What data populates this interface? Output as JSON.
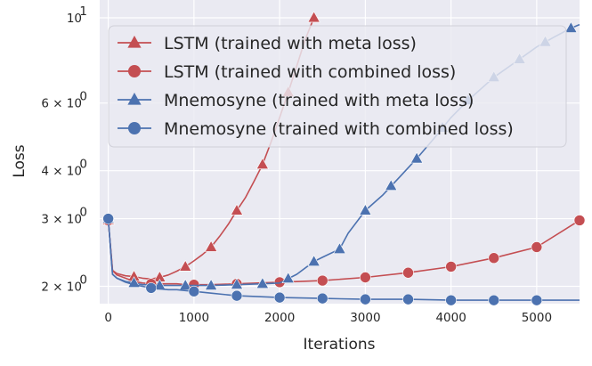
{
  "chart_data": {
    "type": "line",
    "xlabel": "Iterations",
    "ylabel": "Loss",
    "yscale": "log",
    "xlim": [
      -100,
      5500
    ],
    "ylim": [
      1.62,
      10.0
    ],
    "grid": true,
    "x_ticks": [
      0,
      1000,
      2000,
      3000,
      4000,
      5000
    ],
    "x_tick_labels": [
      "0",
      "1000",
      "2000",
      "3000",
      "4000",
      "5000"
    ],
    "y_ticks": [
      10,
      6,
      4,
      3,
      2
    ],
    "y_tick_labels": [
      {
        "mant": "10",
        "exp": "1",
        "prefix": ""
      },
      {
        "mant": "10",
        "exp": "0",
        "prefix": "6 × "
      },
      {
        "mant": "10",
        "exp": "0",
        "prefix": "4 × "
      },
      {
        "mant": "10",
        "exp": "0",
        "prefix": "3 × "
      },
      {
        "mant": "10",
        "exp": "0",
        "prefix": "2 × "
      }
    ],
    "legend_position": "top",
    "series": [
      {
        "name": "LSTM (trained with meta loss)",
        "color": "#c44e52",
        "marker": "triangle",
        "x": [
          0,
          50,
          100,
          200,
          300,
          400,
          500,
          600,
          700,
          800,
          900,
          1000,
          1100,
          1200,
          1300,
          1400,
          1500,
          1600,
          1700,
          1800,
          1900,
          2000,
          2100,
          2200,
          2300,
          2400
        ],
        "y": [
          2.97,
          2.2,
          2.16,
          2.13,
          2.12,
          2.1,
          2.09,
          2.11,
          2.14,
          2.19,
          2.25,
          2.33,
          2.42,
          2.53,
          2.7,
          2.9,
          3.15,
          3.4,
          3.75,
          4.15,
          4.75,
          5.5,
          6.4,
          7.5,
          8.8,
          10.0
        ],
        "marker_x": [
          0,
          300,
          600,
          900,
          1200,
          1500,
          1800,
          2100,
          2400
        ]
      },
      {
        "name": "LSTM (trained with combined loss)",
        "color": "#c44e52",
        "marker": "circle",
        "x": [
          0,
          50,
          100,
          200,
          300,
          400,
          500,
          600,
          700,
          800,
          900,
          1000,
          1200,
          1500,
          2000,
          2500,
          3000,
          3500,
          4000,
          4500,
          5000,
          5500
        ],
        "y": [
          2.97,
          2.2,
          2.14,
          2.1,
          2.06,
          2.04,
          2.03,
          2.03,
          2.03,
          2.03,
          2.02,
          2.02,
          2.02,
          2.03,
          2.05,
          2.07,
          2.11,
          2.17,
          2.25,
          2.37,
          2.53,
          2.97
        ],
        "marker_x": [
          0,
          500,
          1000,
          1500,
          2000,
          2500,
          3000,
          3500,
          4000,
          4500,
          5000,
          5500
        ]
      },
      {
        "name": "Mnemosyne (trained with meta loss)",
        "color": "#4c72b0",
        "marker": "triangle",
        "x": [
          0,
          50,
          100,
          200,
          300,
          400,
          500,
          600,
          800,
          1000,
          1200,
          1500,
          1800,
          2000,
          2200,
          2400,
          2500,
          2700,
          2800,
          3000,
          3200,
          3400,
          3600,
          3800,
          4000,
          4200,
          4500,
          4800,
          5000,
          5200,
          5400,
          5500
        ],
        "y": [
          3.0,
          2.15,
          2.1,
          2.06,
          2.04,
          2.02,
          2.02,
          2.01,
          2.01,
          2.01,
          2.01,
          2.02,
          2.03,
          2.04,
          2.15,
          2.32,
          2.38,
          2.5,
          2.75,
          3.15,
          3.45,
          3.85,
          4.3,
          4.85,
          5.5,
          6.1,
          7.0,
          7.8,
          8.4,
          8.9,
          9.4,
          9.6
        ],
        "marker_x": [
          0,
          300,
          600,
          900,
          1200,
          1500,
          1800,
          2100,
          2400,
          2700,
          3000,
          3300,
          3600,
          3900,
          4200,
          4500,
          4800,
          5100,
          5400
        ]
      },
      {
        "name": "Mnemosyne (trained with combined loss)",
        "color": "#4c72b0",
        "marker": "circle",
        "x": [
          0,
          50,
          100,
          200,
          300,
          400,
          500,
          600,
          700,
          800,
          900,
          1000,
          1200,
          1500,
          2000,
          2500,
          3000,
          3500,
          4000,
          4500,
          5000,
          5500
        ],
        "y": [
          3.0,
          2.15,
          2.1,
          2.05,
          2.02,
          2.0,
          1.98,
          1.97,
          1.96,
          1.96,
          1.95,
          1.94,
          1.92,
          1.89,
          1.87,
          1.86,
          1.85,
          1.85,
          1.84,
          1.84,
          1.84,
          1.84
        ],
        "marker_x": [
          0,
          500,
          1000,
          1500,
          2000,
          2500,
          3000,
          3500,
          4000,
          4500,
          5000
        ]
      }
    ]
  }
}
